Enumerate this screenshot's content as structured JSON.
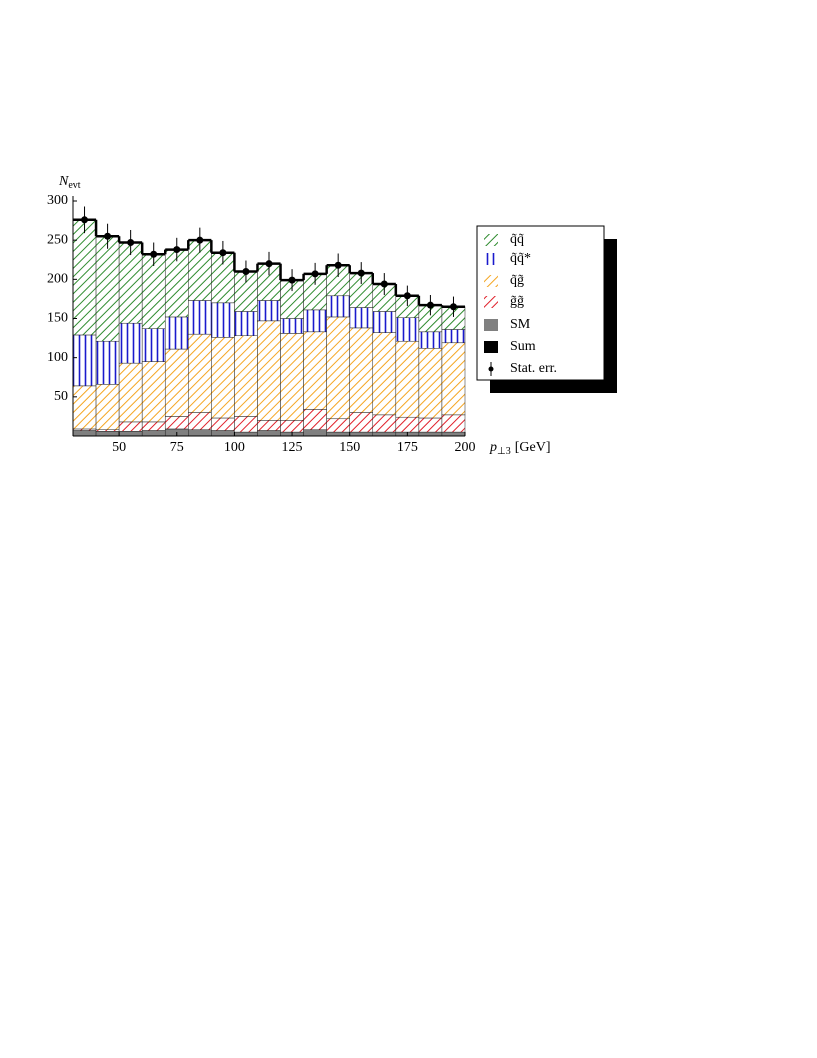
{
  "chart_data": {
    "type": "stacked_histogram",
    "ylabel_main": "N",
    "ylabel_sub": "evt",
    "xlabel_main": "p",
    "xlabel_sub": "⊥3",
    "xlabel_unit": "[GeV]",
    "bins": [
      30,
      40,
      50,
      60,
      70,
      80,
      90,
      100,
      110,
      120,
      130,
      140,
      150,
      160,
      170,
      180,
      190,
      200
    ],
    "xlim": [
      30,
      200
    ],
    "xticks": [
      50,
      75,
      100,
      125,
      150,
      175,
      200
    ],
    "ylim": [
      0,
      300
    ],
    "yticks": [
      50,
      100,
      150,
      200,
      250,
      300
    ],
    "legend": "right",
    "series": [
      {
        "name": "q̃q̃",
        "color": "#2e8b2e",
        "hatch": "diagonal",
        "values": [
          147,
          134,
          103,
          95,
          86,
          77,
          64,
          51,
          47,
          49,
          46,
          39,
          44,
          35,
          28,
          34,
          29
        ]
      },
      {
        "name": "q̃q̃*",
        "color": "#1a1acc",
        "hatch": "vertical",
        "values": [
          65,
          55,
          51,
          42,
          41,
          43,
          44,
          31,
          26,
          19,
          28,
          27,
          26,
          27,
          30,
          21,
          17
        ]
      },
      {
        "name": "q̃g̃",
        "color": "#f5a623",
        "hatch": "diagonal",
        "values": [
          55,
          58,
          75,
          77,
          86,
          100,
          103,
          103,
          127,
          111,
          99,
          130,
          108,
          105,
          97,
          89,
          92
        ]
      },
      {
        "name": "g̃g̃",
        "color": "#e0202a",
        "hatch": "diagonal",
        "values": [
          2,
          2,
          12,
          11,
          16,
          22,
          16,
          20,
          13,
          15,
          26,
          17,
          25,
          22,
          19,
          18,
          22
        ]
      },
      {
        "name": "SM",
        "color": "#808080",
        "hatch": "solid",
        "values": [
          7,
          6,
          6,
          7,
          9,
          8,
          7,
          5,
          7,
          5,
          8,
          5,
          5,
          5,
          5,
          5,
          5
        ]
      },
      {
        "name": "Sum",
        "color": "#000000",
        "hatch": "line",
        "values": [
          276,
          255,
          247,
          232,
          238,
          250,
          234,
          210,
          220,
          199,
          207,
          218,
          208,
          194,
          179,
          167,
          165
        ],
        "errors": [
          17,
          16,
          16,
          15,
          15,
          16,
          15,
          14,
          15,
          14,
          14,
          15,
          14,
          14,
          13,
          13,
          13
        ]
      }
    ],
    "error_label": "Stat. err."
  }
}
